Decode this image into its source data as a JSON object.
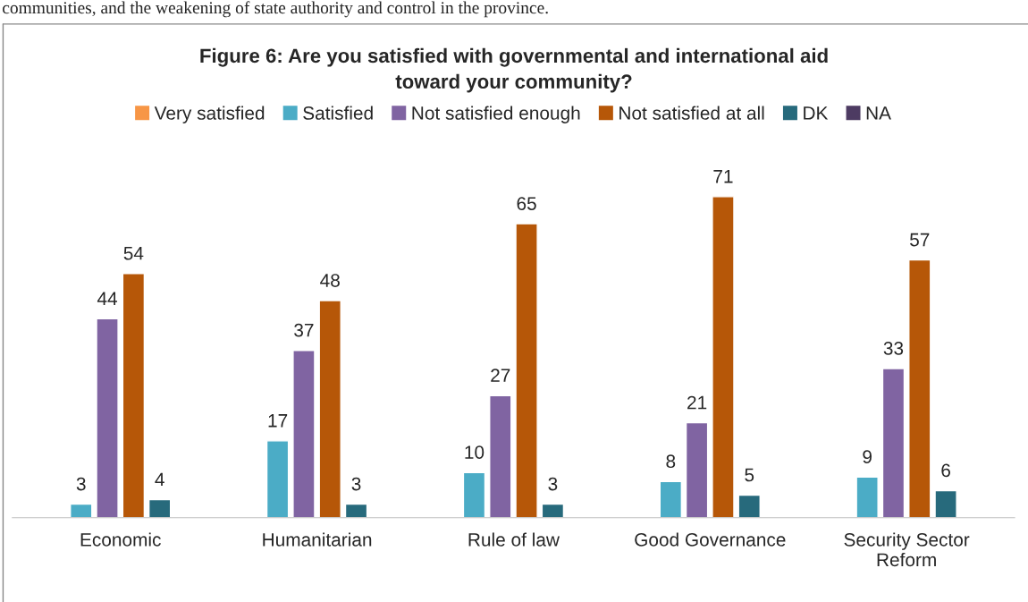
{
  "chart_data": {
    "type": "bar",
    "title": "Figure 6: Are you satisfied with governmental and international aid\ntoward your community?",
    "annotations": [
      "communities, and the weakening of state authority and control in the province."
    ],
    "categories": [
      "Economic",
      "Humanitarian",
      "Rule of law",
      "Good Governance",
      "Security Sector\nReform"
    ],
    "series": [
      {
        "name": "Very satisfied",
        "color": "#f79646",
        "values": [
          null,
          null,
          null,
          null,
          null
        ]
      },
      {
        "name": "Satisfied",
        "color": "#4bacc6",
        "values": [
          3,
          17,
          10,
          8,
          9
        ]
      },
      {
        "name": "Not satisfied enough",
        "color": "#8064a2",
        "values": [
          44,
          37,
          27,
          21,
          33
        ]
      },
      {
        "name": "Not satisfied at all",
        "color": "#b65708",
        "values": [
          54,
          48,
          65,
          71,
          57
        ]
      },
      {
        "name": "DK",
        "color": "#276a7c",
        "values": [
          4,
          3,
          3,
          5,
          6
        ]
      },
      {
        "name": "NA",
        "color": "#4d3b62",
        "values": [
          null,
          null,
          null,
          null,
          null
        ]
      }
    ],
    "data_labels": true,
    "legend": "top",
    "grid": false
  }
}
